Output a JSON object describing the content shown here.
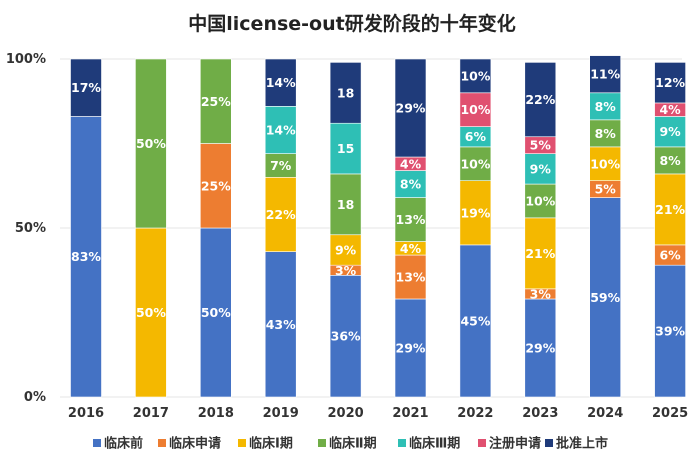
{
  "chart_data": {
    "type": "bar",
    "stacked": "percent",
    "title": "中国license-out研发阶段的十年变化",
    "xlabel": "",
    "ylabel": "",
    "ylim": [
      0,
      100
    ],
    "y_ticks": [
      {
        "value": 0,
        "label": "0%"
      },
      {
        "value": 50,
        "label": "50%"
      },
      {
        "value": 100,
        "label": "100%"
      }
    ],
    "categories": [
      "2016",
      "2017",
      "2018",
      "2019",
      "2020",
      "2021",
      "2022",
      "2023",
      "2024",
      "2025"
    ],
    "series": [
      {
        "name": "临床前",
        "color": "#4472C4",
        "values": [
          83,
          0,
          50,
          43,
          36,
          29,
          45,
          29,
          59,
          39
        ],
        "labels": [
          "83%",
          "",
          "50%",
          "43%",
          "36%",
          "29%",
          "45%",
          "29%",
          "59%",
          "39%"
        ]
      },
      {
        "name": "临床申请",
        "color": "#ED7D31",
        "values": [
          0,
          0,
          25,
          0,
          3,
          13,
          0,
          3,
          5,
          6
        ],
        "labels": [
          "",
          "",
          "25%",
          "",
          "3%",
          "13%",
          "",
          "3%",
          "5%",
          "6%"
        ]
      },
      {
        "name": "临床Ⅰ期",
        "color": "#F4B800",
        "values": [
          0,
          50,
          0,
          22,
          9,
          4,
          19,
          21,
          10,
          21
        ],
        "labels": [
          "",
          "50%",
          "",
          "22%",
          "9%",
          "4%",
          "19%",
          "21%",
          "10%",
          "21%"
        ]
      },
      {
        "name": "临床Ⅱ期",
        "color": "#70AD47",
        "values": [
          0,
          50,
          25,
          7,
          18,
          13,
          10,
          10,
          8,
          8
        ],
        "labels": [
          "",
          "50%",
          "25%",
          "7%",
          "18",
          "13%",
          "10%",
          "10%",
          "8%",
          "8%"
        ]
      },
      {
        "name": "临床Ⅲ期",
        "color": "#2EBFB5",
        "values": [
          0,
          0,
          0,
          14,
          15,
          8,
          6,
          9,
          8,
          9
        ],
        "labels": [
          "",
          "",
          "",
          "14%",
          "15",
          "8%",
          "6%",
          "9%",
          "8%",
          "9%"
        ]
      },
      {
        "name": "注册申请",
        "color": "#E05070",
        "values": [
          0,
          0,
          0,
          0,
          0,
          4,
          10,
          5,
          0,
          4
        ],
        "labels": [
          "",
          "",
          "",
          "",
          "",
          "4%",
          "10%",
          "5%",
          "",
          "4%"
        ]
      },
      {
        "name": "批准上市",
        "color": "#1F3B7A",
        "values": [
          17,
          0,
          0,
          14,
          18,
          29,
          10,
          22,
          11,
          12
        ],
        "labels": [
          "17%",
          "",
          "",
          "14%",
          "18",
          "29%",
          "10%",
          "22%",
          "11%",
          "12%"
        ]
      }
    ]
  }
}
